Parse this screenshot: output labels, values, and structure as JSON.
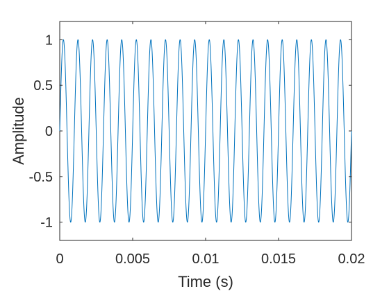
{
  "chart_data": {
    "type": "line",
    "title": "",
    "xlabel": "Time (s)",
    "ylabel": "Amplitude",
    "xlim": [
      0,
      0.02
    ],
    "ylim": [
      -1.2,
      1.2
    ],
    "x_ticks": [
      0,
      0.005,
      0.01,
      0.015,
      0.02
    ],
    "x_tick_labels": [
      "0",
      "0.005",
      "0.01",
      "0.015",
      "0.02"
    ],
    "y_ticks": [
      -1,
      -0.5,
      0,
      0.5,
      1
    ],
    "y_tick_labels": [
      "-1",
      "-0.5",
      "0",
      "0.5",
      "1"
    ],
    "grid": false,
    "legend": "none",
    "series": [
      {
        "function": "sin(2*pi*f*t)",
        "frequency_hz": 1000,
        "amplitude": 1,
        "t_start": 0,
        "t_end": 0.02,
        "color": "#0072BD"
      }
    ]
  }
}
